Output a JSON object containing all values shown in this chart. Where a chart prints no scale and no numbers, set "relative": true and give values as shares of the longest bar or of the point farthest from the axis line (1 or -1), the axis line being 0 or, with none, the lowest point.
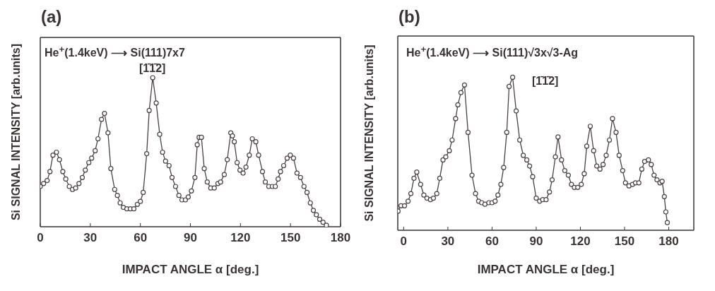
{
  "chart_data": [
    {
      "type": "line",
      "title": "(a)",
      "xlabel": "IMPACT ANGLE α [deg.]",
      "ylabel": "Si SIGNAL INTENSITY [arb.units]",
      "relative": true,
      "tick_labels": "x",
      "marker": "circle",
      "line_style": "solid",
      "annotations": [
        "He$^{+}$(1.4keV) ⟶ Si(111)7x7",
        "[1̄1̄2]"
      ],
      "xlim": [
        0,
        180
      ],
      "xticks": [
        0,
        30,
        60,
        90,
        120,
        150,
        180
      ],
      "x": [
        0,
        2.0,
        4.1,
        5.8,
        7.6,
        9.7,
        11.5,
        13.5,
        15.3,
        17.4,
        19.3,
        21.2,
        23.2,
        25.2,
        27.0,
        29.1,
        30.8,
        32.9,
        34.6,
        36.7,
        38.5,
        40.6,
        42.3,
        44.6,
        46.2,
        47.9,
        49.8,
        51.9,
        54.0,
        56.1,
        58.2,
        60.0,
        61.7,
        63.8,
        65.3,
        67.4,
        69.5,
        71.6,
        73.3,
        75.1,
        77.2,
        79.0,
        81.1,
        83.1,
        84.9,
        87.0,
        88.7,
        90.6,
        92.7,
        94.1,
        95.2,
        96.6,
        98.3,
        100.1,
        102.2,
        104.3,
        106.5,
        108.1,
        110.3,
        112.1,
        114.2,
        115.2,
        116.3,
        118.0,
        119.7,
        121.6,
        123.3,
        125.3,
        127.1,
        129.2,
        130.9,
        133.2,
        134.9,
        137.0,
        139.1,
        140.9,
        142.6,
        144.0,
        145.9,
        148.0,
        149.9,
        151.8,
        153.9,
        156.0,
        158.1,
        159.9,
        161.9,
        163.7,
        165.5,
        167.5,
        169.5,
        171.5
      ],
      "series": [
        {
          "color": "#4a4242",
          "values": [
            0.27,
            0.29,
            0.31,
            0.37,
            0.48,
            0.5,
            0.45,
            0.37,
            0.32,
            0.27,
            0.25,
            0.26,
            0.29,
            0.33,
            0.38,
            0.43,
            0.46,
            0.51,
            0.59,
            0.72,
            0.76,
            0.63,
            0.39,
            0.25,
            0.21,
            0.16,
            0.13,
            0.12,
            0.12,
            0.12,
            0.15,
            0.17,
            0.23,
            0.49,
            0.78,
            1.0,
            0.83,
            0.62,
            0.5,
            0.44,
            0.41,
            0.33,
            0.27,
            0.21,
            0.18,
            0.18,
            0.2,
            0.24,
            0.33,
            0.55,
            0.6,
            0.6,
            0.39,
            0.3,
            0.26,
            0.26,
            0.29,
            0.3,
            0.35,
            0.45,
            0.63,
            0.61,
            0.57,
            0.43,
            0.38,
            0.36,
            0.4,
            0.48,
            0.59,
            0.57,
            0.48,
            0.37,
            0.3,
            0.27,
            0.27,
            0.27,
            0.32,
            0.37,
            0.41,
            0.46,
            0.48,
            0.46,
            0.36,
            0.33,
            0.27,
            0.23,
            0.16,
            0.11,
            0.08,
            0.05,
            0.03,
            0.01
          ]
        }
      ]
    },
    {
      "type": "line",
      "title": "(b)",
      "xlabel": "IMPACT ANGLE α [deg.]",
      "ylabel": "Si SIGNAL INTENSITY [arb.units]",
      "relative": true,
      "tick_labels": "x",
      "marker": "circle",
      "line_style": "solid",
      "annotations": [
        "He$^{+}$(1.4keV) ⟶ Si(111)√3x√3-Ag",
        "[1̄1̄2]"
      ],
      "xlim": [
        -4,
        197
      ],
      "xticks": [
        0,
        30,
        60,
        90,
        120,
        150,
        180
      ],
      "x": [
        -3.8,
        -1.8,
        0.6,
        3.0,
        4.9,
        7.0,
        8.9,
        11.5,
        13.7,
        15.8,
        18.2,
        20.2,
        22.5,
        24.5,
        26.7,
        28.6,
        31.0,
        32.9,
        35.3,
        36.8,
        38.9,
        41.3,
        43.7,
        46.4,
        48.8,
        50.9,
        53.0,
        55.2,
        57.8,
        60.0,
        62.1,
        64.0,
        66.0,
        67.9,
        70.0,
        71.6,
        74.0,
        76.4,
        78.8,
        81.2,
        83.6,
        85.5,
        87.6,
        90.0,
        92.3,
        94.4,
        96.7,
        99.0,
        100.8,
        103.0,
        104.8,
        107.2,
        109.4,
        111.8,
        113.9,
        115.9,
        118.2,
        120.6,
        122.6,
        124.3,
        126.7,
        129.0,
        131.1,
        133.3,
        135.4,
        137.5,
        139.7,
        141.8,
        144.2,
        146.3,
        148.7,
        150.6,
        153.0,
        155.4,
        157.4,
        159.7,
        161.7,
        163.6,
        166.2,
        168.1,
        170.0,
        172.0,
        174.0,
        175.5,
        177.0,
        178.0,
        179.0
      ],
      "series": [
        {
          "color": "#4a4242",
          "values": [
            0.125,
            0.16,
            0.16,
            0.19,
            0.24,
            0.34,
            0.38,
            0.3,
            0.23,
            0.21,
            0.2,
            0.21,
            0.24,
            0.34,
            0.46,
            0.48,
            0.52,
            0.59,
            0.73,
            0.82,
            0.9,
            0.95,
            0.64,
            0.36,
            0.24,
            0.19,
            0.18,
            0.17,
            0.18,
            0.18,
            0.19,
            0.23,
            0.3,
            0.41,
            0.64,
            0.94,
            1.0,
            0.78,
            0.59,
            0.49,
            0.46,
            0.42,
            0.35,
            0.21,
            0.19,
            0.2,
            0.2,
            0.25,
            0.33,
            0.48,
            0.61,
            0.46,
            0.39,
            0.36,
            0.3,
            0.28,
            0.28,
            0.3,
            0.37,
            0.55,
            0.68,
            0.52,
            0.42,
            0.4,
            0.43,
            0.49,
            0.59,
            0.73,
            0.64,
            0.49,
            0.39,
            0.31,
            0.29,
            0.3,
            0.31,
            0.31,
            0.4,
            0.45,
            0.46,
            0.43,
            0.36,
            0.33,
            0.31,
            0.32,
            0.22,
            0.12,
            0.05
          ]
        }
      ]
    }
  ]
}
